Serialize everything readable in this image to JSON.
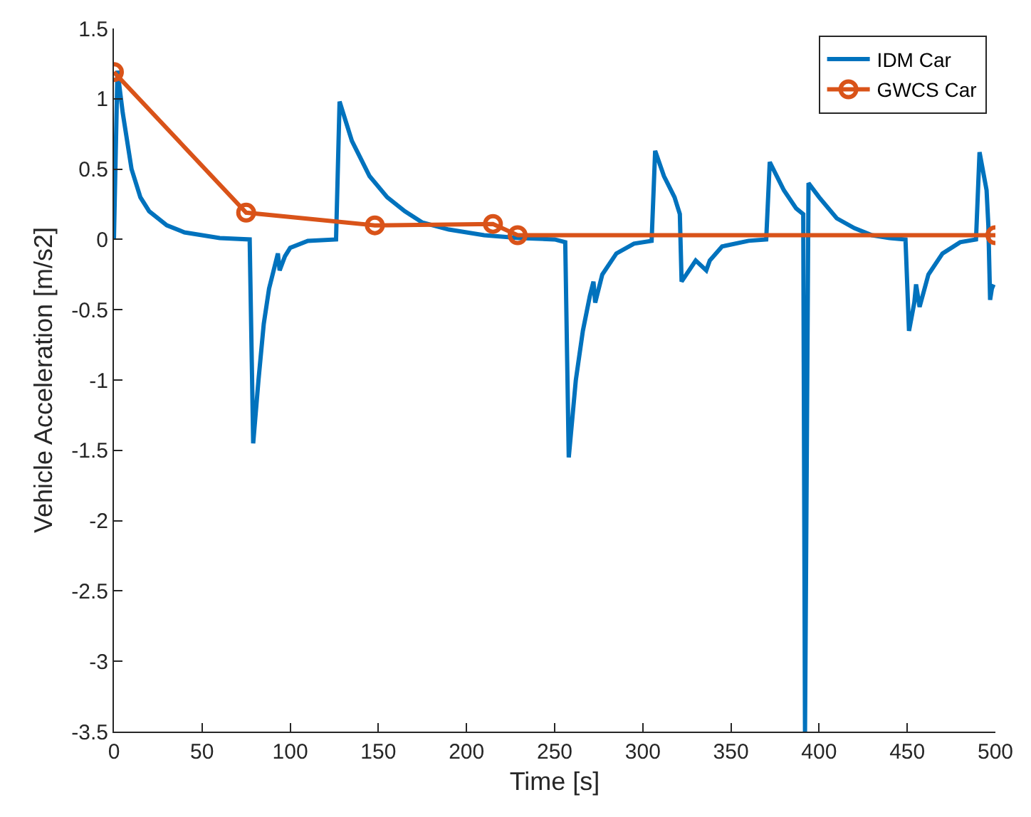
{
  "chart_data": {
    "type": "line",
    "xlabel": "Time [s]",
    "ylabel": "Vehicle Acceleration [m/s2]",
    "xlim": [
      0,
      500
    ],
    "ylim": [
      -3.5,
      1.5
    ],
    "xticks": [
      0,
      50,
      100,
      150,
      200,
      250,
      300,
      350,
      400,
      450,
      500
    ],
    "yticks": [
      -3.5,
      -3,
      -2.5,
      -2,
      -1.5,
      -1,
      -0.5,
      0,
      0.5,
      1,
      1.5
    ],
    "grid": false,
    "legend": "top right",
    "series": [
      {
        "name": "IDM Car",
        "color": "#0072bd",
        "marker": "none",
        "x": [
          0,
          2,
          5,
          10,
          15,
          20,
          30,
          40,
          60,
          77,
          79,
          82,
          85,
          88,
          91,
          93,
          94,
          97,
          100,
          110,
          126,
          128,
          135,
          145,
          155,
          165,
          175,
          190,
          210,
          230,
          250,
          256,
          258,
          262,
          266,
          270,
          272,
          273,
          277,
          285,
          295,
          305,
          307,
          312,
          318,
          321,
          322,
          330,
          336,
          338,
          345,
          360,
          370,
          372,
          380,
          387,
          391,
          392,
          394,
          400,
          410,
          420,
          430,
          440,
          449,
          451,
          454,
          455,
          457,
          462,
          470,
          480,
          489,
          491,
          495,
          496,
          497,
          498,
          499
        ],
        "values": [
          0,
          1.2,
          0.9,
          0.5,
          0.3,
          0.2,
          0.1,
          0.05,
          0.01,
          0,
          -1.45,
          -1,
          -0.6,
          -0.35,
          -0.2,
          -0.1,
          -0.22,
          -0.12,
          -0.06,
          -0.01,
          0,
          0.98,
          0.7,
          0.45,
          0.3,
          0.2,
          0.12,
          0.07,
          0.03,
          0.01,
          0,
          -0.02,
          -1.55,
          -1,
          -0.65,
          -0.4,
          -0.3,
          -0.45,
          -0.25,
          -0.1,
          -0.03,
          -0.01,
          0.63,
          0.45,
          0.3,
          0.18,
          -0.3,
          -0.15,
          -0.22,
          -0.15,
          -0.05,
          -0.01,
          0,
          0.55,
          0.35,
          0.22,
          0.18,
          -3.5,
          0.4,
          0.3,
          0.15,
          0.08,
          0.03,
          0.01,
          0,
          -0.65,
          -0.45,
          -0.32,
          -0.48,
          -0.25,
          -0.1,
          -0.02,
          0,
          0.62,
          0.35,
          0.1,
          -0.43,
          -0.35,
          -0.32
        ]
      },
      {
        "name": "GWCS Car",
        "color": "#d95319",
        "marker": "circle",
        "x": [
          0,
          75,
          148,
          215,
          229,
          500
        ],
        "values": [
          1.19,
          0.19,
          0.1,
          0.11,
          0.03,
          0.03
        ]
      }
    ]
  }
}
